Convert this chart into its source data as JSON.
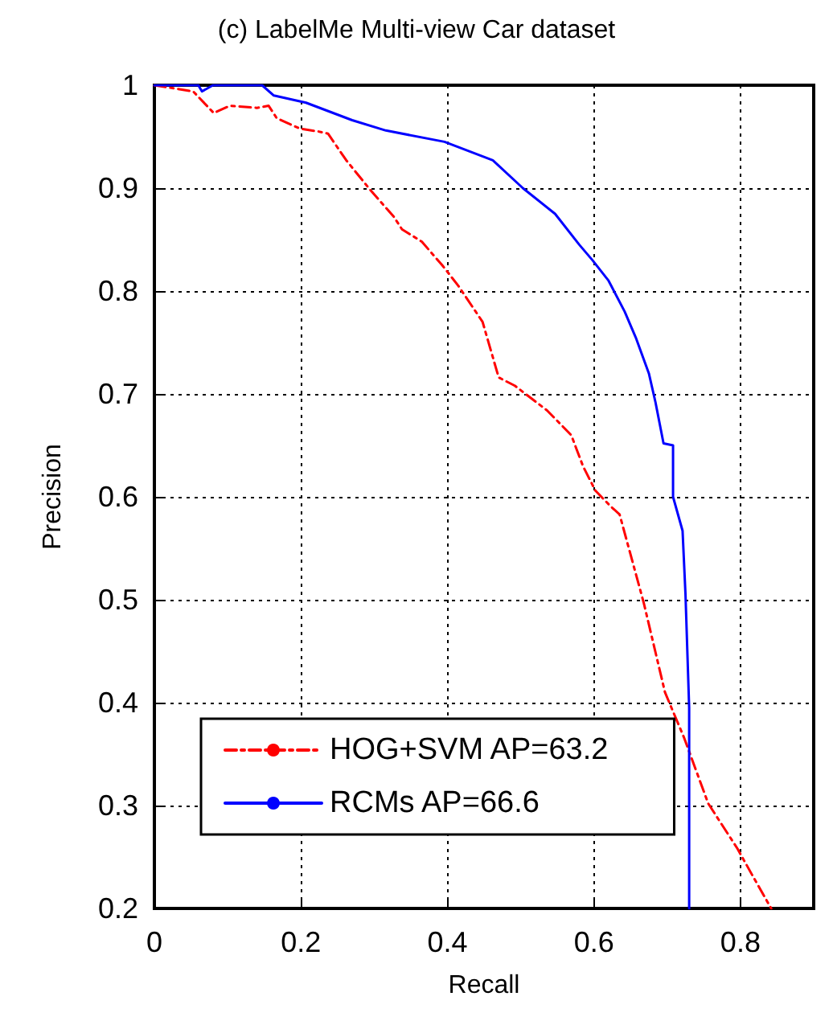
{
  "chart_data": {
    "type": "line",
    "title": "(c) LabelMe Multi-view Car dataset",
    "xlabel": "Recall",
    "ylabel": "Precision",
    "xlim": [
      0,
      0.9
    ],
    "xticks": [
      0,
      0.2,
      0.4,
      0.6,
      0.8
    ],
    "ylim": [
      0.2,
      1
    ],
    "yticks": [
      0.2,
      0.3,
      0.4,
      0.5,
      0.6,
      0.7,
      0.8,
      0.9,
      1
    ],
    "grid": true,
    "legend": "bottom left",
    "marker": "none",
    "series": [
      {
        "name": "HOG+SVM AP=63.2",
        "color": "#ff0000",
        "line_style": "dashed",
        "x": [
          0,
          0.053,
          0.081,
          0.103,
          0.14,
          0.156,
          0.167,
          0.198,
          0.224,
          0.237,
          0.262,
          0.295,
          0.327,
          0.338,
          0.365,
          0.393,
          0.415,
          0.448,
          0.47,
          0.492,
          0.536,
          0.569,
          0.585,
          0.602,
          0.624,
          0.635,
          0.668,
          0.697,
          0.723,
          0.756,
          0.796,
          0.818,
          0.842
        ],
        "values": [
          1,
          0.994,
          0.973,
          0.98,
          0.978,
          0.98,
          0.968,
          0.958,
          0.955,
          0.953,
          0.927,
          0.898,
          0.872,
          0.86,
          0.848,
          0.825,
          0.805,
          0.77,
          0.716,
          0.708,
          0.684,
          0.66,
          0.63,
          0.606,
          0.59,
          0.583,
          0.497,
          0.41,
          0.366,
          0.302,
          0.258,
          0.23,
          0.2
        ]
      },
      {
        "name": "RCMs AP=66.6",
        "color": "#0000ff",
        "line_style": "solid",
        "x": [
          0,
          0.06,
          0.065,
          0.08,
          0.147,
          0.163,
          0.207,
          0.27,
          0.316,
          0.396,
          0.462,
          0.503,
          0.547,
          0.58,
          0.598,
          0.62,
          0.642,
          0.657,
          0.675,
          0.684,
          0.695,
          0.708,
          0.708,
          0.721,
          0.725,
          0.73,
          0.73
        ],
        "values": [
          1,
          1,
          0.994,
          1,
          1,
          0.99,
          0.983,
          0.966,
          0.956,
          0.945,
          0.927,
          0.9,
          0.875,
          0.845,
          0.83,
          0.81,
          0.78,
          0.755,
          0.72,
          0.692,
          0.652,
          0.65,
          0.6,
          0.567,
          0.505,
          0.395,
          0.2
        ]
      }
    ]
  }
}
